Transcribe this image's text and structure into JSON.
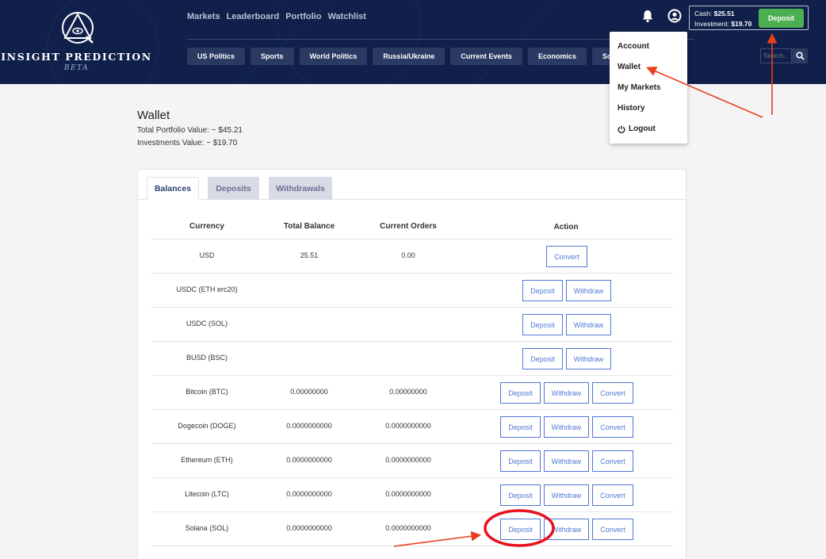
{
  "brand": {
    "name": "INSIGHT PREDICTION",
    "beta": "BETA"
  },
  "topnav": [
    "Markets",
    "Leaderboard",
    "Portfolio",
    "Watchlist"
  ],
  "categories": [
    "US Politics",
    "Sports",
    "World Politics",
    "Russia/Ukraine",
    "Current Events",
    "Economics",
    "Science"
  ],
  "wallet": {
    "cash_label": "Cash:",
    "cash_value": "$25.51",
    "investment_label": "Investment:",
    "investment_value": "$19.70",
    "deposit_label": "Deposit"
  },
  "search": {
    "placeholder": "Search..."
  },
  "dropdown": {
    "items": [
      "Account",
      "Wallet",
      "My Markets",
      "History",
      "Logout"
    ]
  },
  "page": {
    "title": "Wallet",
    "portfolio_value": "Total Portfolio Value: ~ $45.21",
    "investments_value": "Investments Value: ~ $19.70"
  },
  "tabs": [
    "Balances",
    "Deposits",
    "Withdrawals"
  ],
  "table": {
    "headers": [
      "Currency",
      "Total Balance",
      "Current Orders",
      "Action"
    ],
    "rows": [
      {
        "currency": "USD",
        "balance": "25.51",
        "orders": "0.00",
        "actions": [
          "Convert"
        ]
      },
      {
        "currency": "USDC (ETH erc20)",
        "balance": "",
        "orders": "",
        "actions": [
          "Deposit",
          "Withdraw"
        ]
      },
      {
        "currency": "USDC (SOL)",
        "balance": "",
        "orders": "",
        "actions": [
          "Deposit",
          "Withdraw"
        ]
      },
      {
        "currency": "BUSD (BSC)",
        "balance": "",
        "orders": "",
        "actions": [
          "Deposit",
          "Withdraw"
        ]
      },
      {
        "currency": "Bitcoin (BTC)",
        "balance": "0.00000000",
        "orders": "0.00000000",
        "actions": [
          "Deposit",
          "Withdraw",
          "Convert"
        ]
      },
      {
        "currency": "Dogecoin (DOGE)",
        "balance": "0.0000000000",
        "orders": "0.0000000000",
        "actions": [
          "Deposit",
          "Withdraw",
          "Convert"
        ]
      },
      {
        "currency": "Ethereum (ETH)",
        "balance": "0.0000000000",
        "orders": "0.0000000000",
        "actions": [
          "Deposit",
          "Withdraw",
          "Convert"
        ]
      },
      {
        "currency": "Litecoin (LTC)",
        "balance": "0.0000000000",
        "orders": "0.0000000000",
        "actions": [
          "Deposit",
          "Withdraw",
          "Convert"
        ]
      },
      {
        "currency": "Solana (SOL)",
        "balance": "0.0000000000",
        "orders": "0.0000000000",
        "actions": [
          "Deposit",
          "Withdraw",
          "Convert"
        ]
      }
    ]
  },
  "colors": {
    "header": "#10204a",
    "accent_green": "#4caf50",
    "button_blue": "#4f78d6",
    "annotation_red": "#e8401c"
  }
}
